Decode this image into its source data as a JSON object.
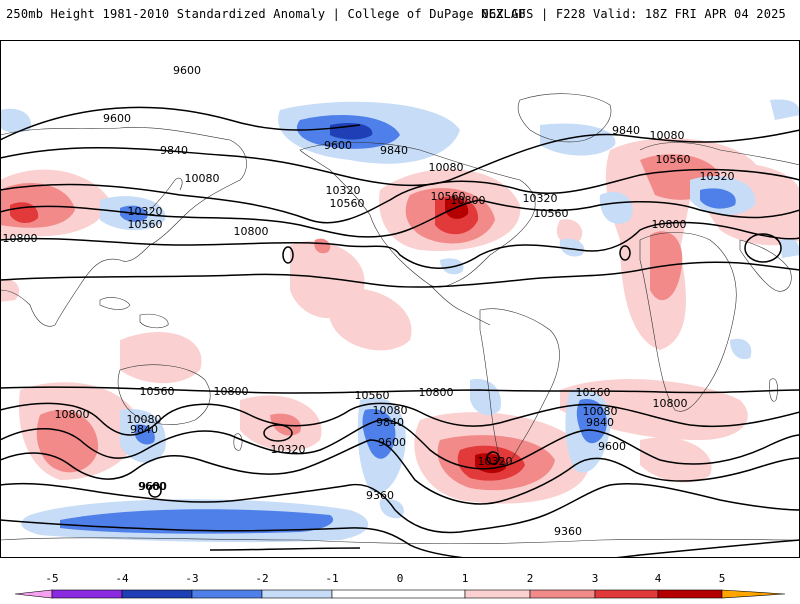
{
  "header": {
    "left": "250mb Height 1981-2010 Standardized Anomaly | College of DuPage NEXLAB",
    "right": "06Z GFS | F228 Valid: 18Z FRI APR 04 2025"
  },
  "map": {
    "contour_labels": [
      "9600",
      "9600",
      "9840",
      "10080",
      "10320",
      "10560",
      "10800",
      "9600",
      "9840",
      "10080",
      "10320",
      "10560",
      "10560",
      "10800",
      "10320",
      "10800",
      "9840",
      "10080",
      "10560",
      "10800",
      "10320",
      "10560",
      "10800",
      "10080",
      "9840",
      "9600",
      "10560",
      "10800",
      "10320",
      "10080",
      "9840",
      "9600",
      "10560",
      "10800",
      "10320",
      "9360",
      "9360",
      "10560",
      "10080",
      "9840",
      "9600",
      "10800",
      "9600"
    ],
    "colors": {
      "neg5": "#f5a0f0",
      "neg4": "#8a2be2",
      "neg3": "#1e3fb5",
      "neg2": "#4f7fe8",
      "neg1": "#c6dcf7",
      "pos1": "#fbd0d0",
      "pos2": "#f28a8a",
      "pos3": "#e23a3a",
      "pos4": "#b40000",
      "pos5": "#ffa500"
    }
  },
  "colorbar": {
    "ticks": [
      "-5",
      "-4",
      "-3",
      "-2",
      "-1",
      "0",
      "1",
      "2",
      "3",
      "4",
      "5"
    ],
    "colors": [
      "#f5a0f0",
      "#8a2be2",
      "#1e3fb5",
      "#4f7fe8",
      "#c6dcf7",
      "#ffffff",
      "#fbd0d0",
      "#f28a8a",
      "#e23a3a",
      "#b40000",
      "#ffa500"
    ]
  }
}
